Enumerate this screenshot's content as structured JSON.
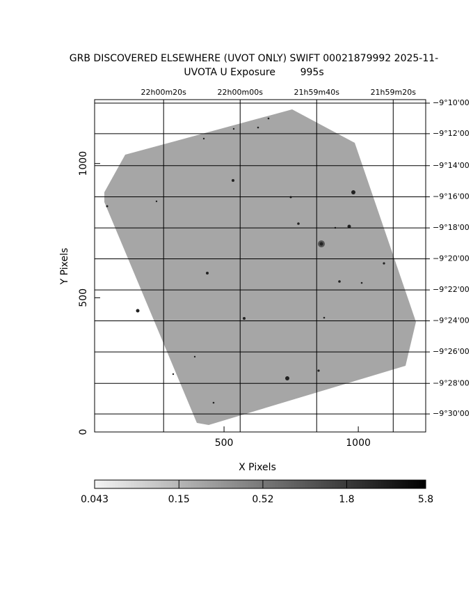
{
  "chart_data": {
    "type": "image",
    "title": "GRB DISCOVERED ELSEWHERE (UVOT ONLY) SWIFT 00021879992 2025-11-",
    "subtitle": "UVOTA U Exposure        995s",
    "xlabel": "X Pixels",
    "ylabel": "Y Pixels",
    "xlim": [
      18,
      1251
    ],
    "ylim": [
      0,
      1238
    ],
    "xticks": [
      500,
      1000
    ],
    "yticks": [
      0,
      500,
      1000
    ],
    "x2ticks": [
      {
        "value": 275,
        "label": "22h00m20s"
      },
      {
        "value": 560,
        "label": "22h00m00s"
      },
      {
        "value": 845,
        "label": "21h59m40s"
      },
      {
        "value": 1130,
        "label": "21h59m20s"
      }
    ],
    "y2ticks": [
      {
        "value": 1225,
        "label": "−9°10'00"
      },
      {
        "value": 1111,
        "label": "−9°12'00"
      },
      {
        "value": 992,
        "label": "−9°14'00"
      },
      {
        "value": 876,
        "label": "−9°16'00"
      },
      {
        "value": 760,
        "label": "−9°18'00"
      },
      {
        "value": 645,
        "label": "−9°20'00"
      },
      {
        "value": 529,
        "label": "−9°22'00"
      },
      {
        "value": 414,
        "label": "−9°24'00"
      },
      {
        "value": 298,
        "label": "−9°26'00"
      },
      {
        "value": 181,
        "label": "−9°28'00"
      },
      {
        "value": 67,
        "label": "−9°30'00"
      }
    ],
    "grid": true,
    "colorbar": {
      "lim": [
        0.043,
        5.8
      ],
      "log": true,
      "ticks": [
        {
          "value": 0.043,
          "label": "0.043"
        },
        {
          "value": 0.15,
          "label": "0.15"
        },
        {
          "value": 0.52,
          "label": "0.52"
        },
        {
          "value": 1.8,
          "label": "1.8"
        },
        {
          "value": 5.8,
          "label": "5.8"
        }
      ]
    }
  }
}
